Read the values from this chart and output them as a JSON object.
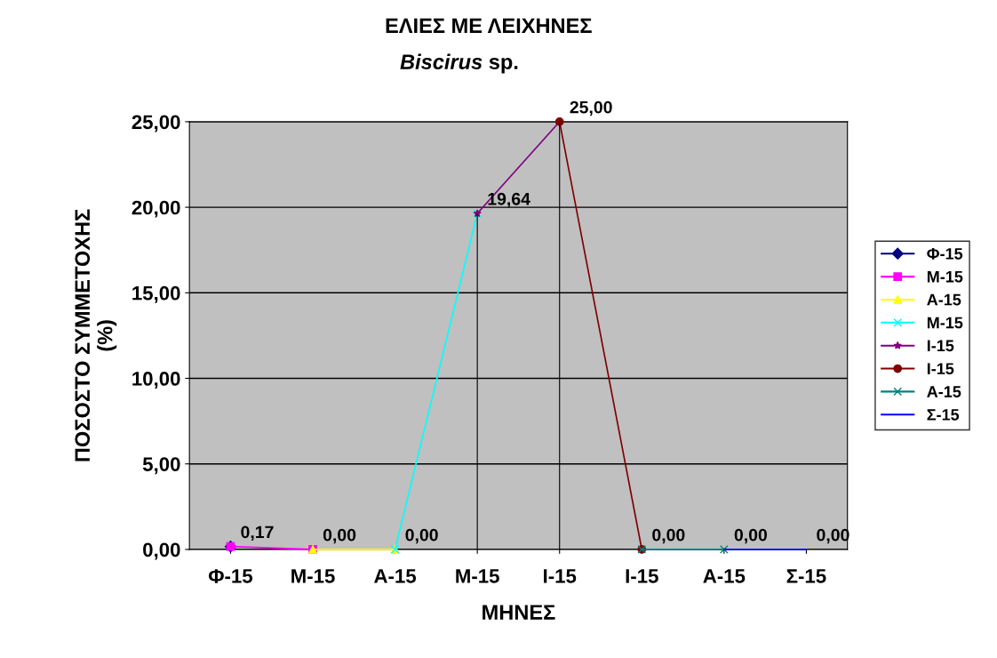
{
  "chart_data": {
    "type": "line",
    "title": "ΕΛΙΕΣ ΜΕ ΛΕΙΧΗΝΕΣ",
    "subtitle": "Biscirus sp.",
    "xlabel": "ΜΗΝΕΣ",
    "ylabel": "ΠΟΣΟΣΤΟ ΣΥΜΜΕΤΟΧΗΣ\n(%)",
    "categories": [
      "Φ-15",
      "Μ-15",
      "Α-15",
      "Μ-15",
      "Ι-15",
      "Ι-15",
      "Α-15",
      "Σ-15"
    ],
    "ylim": [
      0,
      25
    ],
    "yticks": [
      {
        "value": 0,
        "label": "0,00"
      },
      {
        "value": 5,
        "label": "5,00"
      },
      {
        "value": 10,
        "label": "10,00"
      },
      {
        "value": 15,
        "label": "15,00"
      },
      {
        "value": 20,
        "label": "20,00"
      },
      {
        "value": 25,
        "label": "25,00"
      }
    ],
    "grid": "y",
    "legend": "right",
    "series": [
      {
        "name": "Φ-15",
        "color": "#000080",
        "marker": "diamond",
        "values": [
          0.17,
          null,
          null,
          null,
          null,
          null,
          null,
          null
        ],
        "value_labels": [
          "0,17",
          null,
          null,
          null,
          null,
          null,
          null,
          null
        ]
      },
      {
        "name": "Μ-15",
        "color": "#ff00ff",
        "marker": "square",
        "values": [
          0.17,
          0,
          null,
          null,
          null,
          null,
          null,
          null
        ],
        "value_labels": [
          null,
          "0,00",
          null,
          null,
          null,
          null,
          null,
          null
        ]
      },
      {
        "name": "Α-15",
        "color": "#ffff00",
        "marker": "triangle",
        "values": [
          null,
          0,
          0,
          null,
          null,
          null,
          null,
          null
        ],
        "value_labels": [
          null,
          null,
          "0,00",
          null,
          null,
          null,
          null,
          null
        ]
      },
      {
        "name": "Μ-15",
        "color": "#00ffff",
        "marker": "cross",
        "values": [
          null,
          null,
          0,
          19.64,
          null,
          null,
          null,
          null
        ],
        "value_labels": [
          null,
          null,
          null,
          "19,64",
          null,
          null,
          null,
          null
        ]
      },
      {
        "name": "Ι-15",
        "color": "#800080",
        "marker": "star",
        "values": [
          null,
          null,
          null,
          19.64,
          25,
          null,
          null,
          null
        ],
        "value_labels": [
          null,
          null,
          null,
          null,
          "25,00",
          null,
          null,
          null
        ]
      },
      {
        "name": "Ι-15",
        "color": "#800000",
        "marker": "circle",
        "values": [
          null,
          null,
          null,
          null,
          25,
          0,
          null,
          null
        ],
        "value_labels": [
          null,
          null,
          null,
          null,
          null,
          "0,00",
          null,
          null
        ]
      },
      {
        "name": "Α-15",
        "color": "#008080",
        "marker": "cross",
        "values": [
          null,
          null,
          null,
          null,
          null,
          0,
          0,
          null
        ],
        "value_labels": [
          null,
          null,
          null,
          null,
          null,
          null,
          "0,00",
          null
        ]
      },
      {
        "name": "Σ-15",
        "color": "#0000ff",
        "marker": "none",
        "values": [
          null,
          null,
          null,
          null,
          null,
          null,
          0,
          0
        ],
        "value_labels": [
          null,
          null,
          null,
          null,
          null,
          null,
          null,
          "0,00"
        ]
      },
      {
        "type": "bar",
        "color": "#000000",
        "values": [
          null,
          null,
          null,
          19.64,
          25,
          null,
          null,
          null
        ]
      }
    ]
  }
}
